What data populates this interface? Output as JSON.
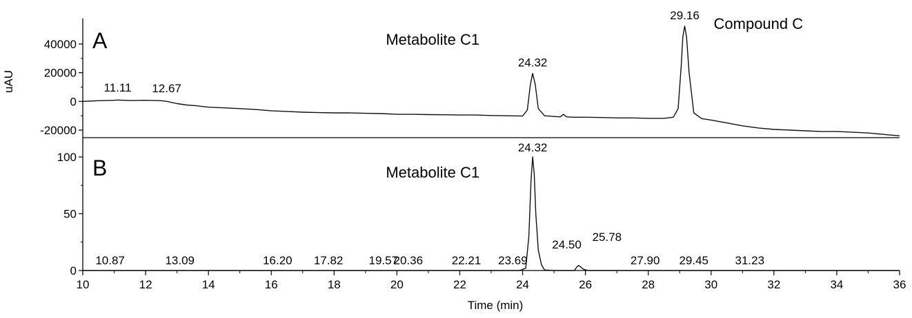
{
  "chart_data": [
    {
      "type": "line",
      "panel_label": "A",
      "ylabel": "uAU",
      "xlim": [
        10,
        36
      ],
      "ylim": [
        -24000,
        54000
      ],
      "y_ticks": [
        -20000,
        0,
        20000,
        40000
      ],
      "y_tick_labels": [
        "-20000",
        "0",
        "20000",
        "40000"
      ],
      "annotations": [
        {
          "text": "Metabolite C1",
          "x": 24.32
        },
        {
          "text": "Compound C",
          "x": 29.16
        }
      ],
      "peak_labels": [
        {
          "text": "11.11",
          "x": 11.11,
          "y": 2000
        },
        {
          "text": "12.67",
          "x": 12.67,
          "y": 1500
        },
        {
          "text": "24.32",
          "x": 24.32,
          "y": 19500
        },
        {
          "text": "29.16",
          "x": 29.16,
          "y": 52500
        }
      ],
      "series": [
        {
          "x": [
            10.0,
            10.5,
            11.0,
            11.11,
            11.5,
            12.0,
            12.5,
            12.67,
            13.0,
            13.3,
            13.6,
            14.0,
            14.5,
            15.0,
            15.4,
            15.7,
            16.0,
            16.5,
            17.0,
            17.5,
            18.0,
            18.5,
            19.0,
            19.5,
            20.0,
            20.5,
            21.0,
            21.5,
            22.0,
            22.5,
            23.0,
            23.5,
            24.0,
            24.15,
            24.25,
            24.32,
            24.4,
            24.5,
            24.7,
            25.0,
            25.2,
            25.3,
            25.4,
            25.6,
            26.0,
            26.5,
            27.0,
            27.5,
            28.0,
            28.5,
            28.8,
            28.95,
            29.05,
            29.1,
            29.16,
            29.22,
            29.3,
            29.45,
            29.7,
            30.0,
            30.5,
            31.0,
            31.5,
            32.0,
            32.5,
            33.0,
            33.5,
            34.0,
            34.5,
            35.0,
            35.5,
            36.0
          ],
          "values": [
            0,
            500,
            800,
            1000,
            600,
            800,
            500,
            0,
            -1500,
            -2500,
            -3000,
            -4000,
            -4500,
            -5000,
            -5500,
            -6000,
            -6500,
            -7000,
            -7500,
            -7800,
            -8000,
            -8000,
            -8300,
            -8500,
            -9000,
            -9000,
            -9200,
            -9300,
            -9500,
            -9500,
            -9800,
            -10000,
            -10200,
            -6000,
            12000,
            19500,
            12000,
            -5000,
            -10000,
            -10500,
            -10800,
            -9000,
            -10800,
            -11000,
            -11000,
            -11200,
            -11500,
            -11500,
            -11800,
            -11800,
            -11000,
            -5000,
            25000,
            45000,
            52500,
            45000,
            20000,
            -8000,
            -12000,
            -13000,
            -15000,
            -17000,
            -18500,
            -19500,
            -20000,
            -20500,
            -21000,
            -21000,
            -21500,
            -22000,
            -23000,
            -24000
          ]
        }
      ]
    },
    {
      "type": "line",
      "panel_label": "B",
      "xlabel": "Time (min)",
      "xlim": [
        10,
        36
      ],
      "ylim": [
        0,
        100
      ],
      "x_ticks": [
        10,
        12,
        14,
        16,
        18,
        20,
        22,
        24,
        26,
        28,
        30,
        32,
        34,
        36
      ],
      "y_ticks": [
        0,
        50,
        100
      ],
      "y_tick_labels": [
        "0",
        "50",
        "100"
      ],
      "annotations": [
        {
          "text": "Metabolite C1",
          "x": 24.32
        }
      ],
      "peak_labels": [
        {
          "text": "10.87",
          "x": 10.87,
          "y": 0
        },
        {
          "text": "13.09",
          "x": 13.09,
          "y": 0
        },
        {
          "text": "16.20",
          "x": 16.2,
          "y": 0
        },
        {
          "text": "17.82",
          "x": 17.82,
          "y": 0
        },
        {
          "text": "19.57",
          "x": 19.57,
          "y": 0
        },
        {
          "text": "20.36",
          "x": 20.36,
          "y": 0
        },
        {
          "text": "22.21",
          "x": 22.21,
          "y": 0
        },
        {
          "text": "23.69",
          "x": 23.69,
          "y": 0
        },
        {
          "text": "24.32",
          "x": 24.32,
          "y": 100
        },
        {
          "text": "24.50",
          "x": 24.5,
          "y": 6
        },
        {
          "text": "25.78",
          "x": 25.78,
          "y": 5
        },
        {
          "text": "27.90",
          "x": 27.9,
          "y": 0
        },
        {
          "text": "29.45",
          "x": 29.45,
          "y": 0
        },
        {
          "text": "31.23",
          "x": 31.23,
          "y": 0
        }
      ],
      "series": [
        {
          "x": [
            10.0,
            23.9,
            24.1,
            24.2,
            24.27,
            24.32,
            24.37,
            24.42,
            24.5,
            24.6,
            24.7,
            25.0,
            25.65,
            25.72,
            25.78,
            25.85,
            25.95,
            26.1,
            36.0
          ],
          "values": [
            0,
            0,
            2,
            30,
            80,
            100,
            85,
            50,
            18,
            5,
            0.5,
            0,
            0,
            3,
            4.5,
            3,
            1,
            0,
            0
          ]
        }
      ]
    }
  ]
}
